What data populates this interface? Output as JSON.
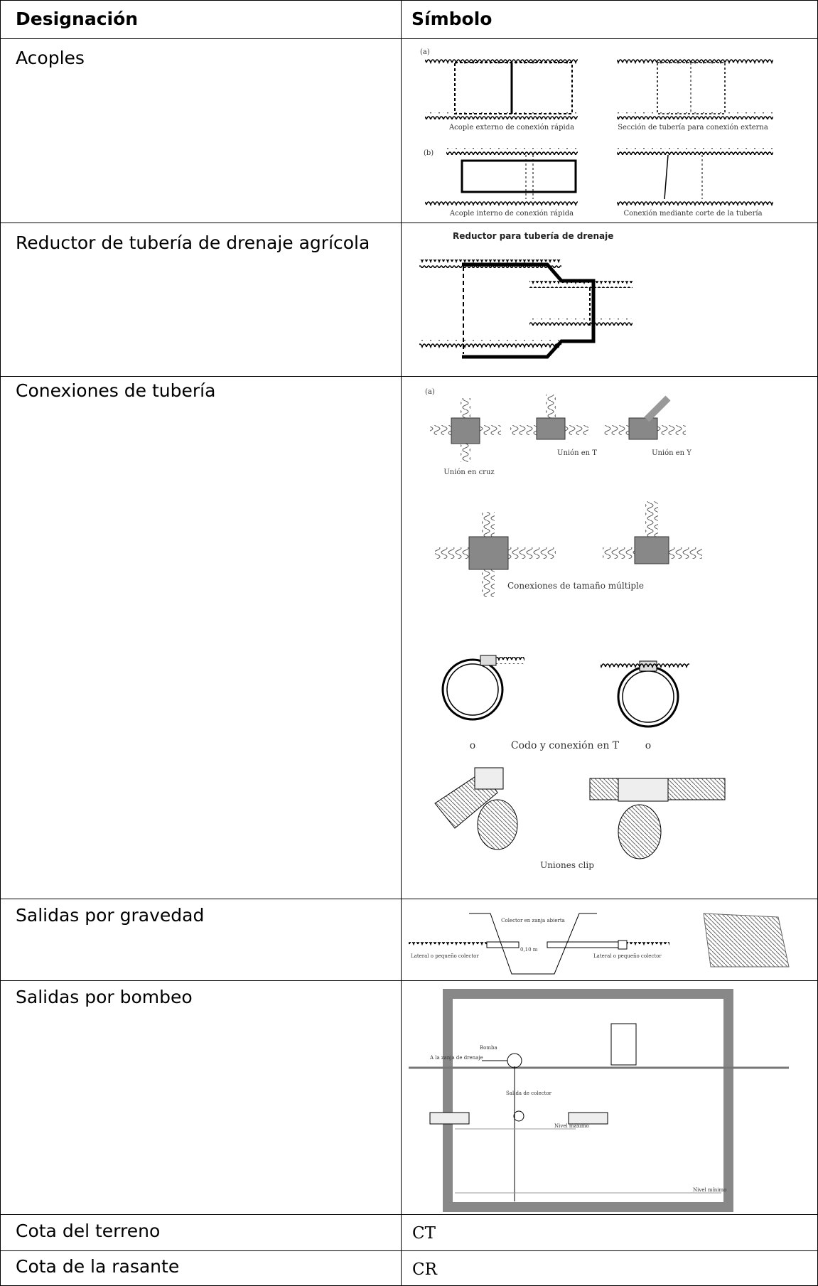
{
  "table": {
    "header": [
      "Designación",
      "Símbolo"
    ],
    "rows": [
      {
        "designation": "Acoples",
        "symbol_labels": [
          "(a)",
          "Acople externo de conexión rápida",
          "Sección de tubería para conexión externa",
          "(b)",
          "Acople interno de conexión rápida",
          "Conexión mediante corte de la tubería"
        ]
      },
      {
        "designation": "Reductor de tubería de drenaje agrícola",
        "symbol_labels": [
          "Reductor para tubería de drenaje"
        ]
      },
      {
        "designation": "Conexiones de tubería",
        "symbol_labels": [
          "(a)",
          "Unión en cruz",
          "Unión en T",
          "Unión en Y",
          "Conexiones de tamaño múltiple",
          "o",
          "Codo y conexión en T",
          "o",
          "Uniones clip"
        ]
      },
      {
        "designation": "Salidas por gravedad",
        "symbol_labels": [
          "Colector en zanja abierta",
          "0,10 m",
          "Lateral o pequeño colector",
          "Lateral o pequeño colector"
        ]
      },
      {
        "designation": "Salidas por bombeo",
        "symbol_labels": [
          "Bomba",
          "A la zanja de drenaje",
          "Salida de colector",
          "Nivel máximo",
          "Nivel mínimo"
        ]
      },
      {
        "designation": "Cota del terreno",
        "symbol": "CT"
      },
      {
        "designation": "Cota de la rasante",
        "symbol": "CR"
      }
    ]
  }
}
